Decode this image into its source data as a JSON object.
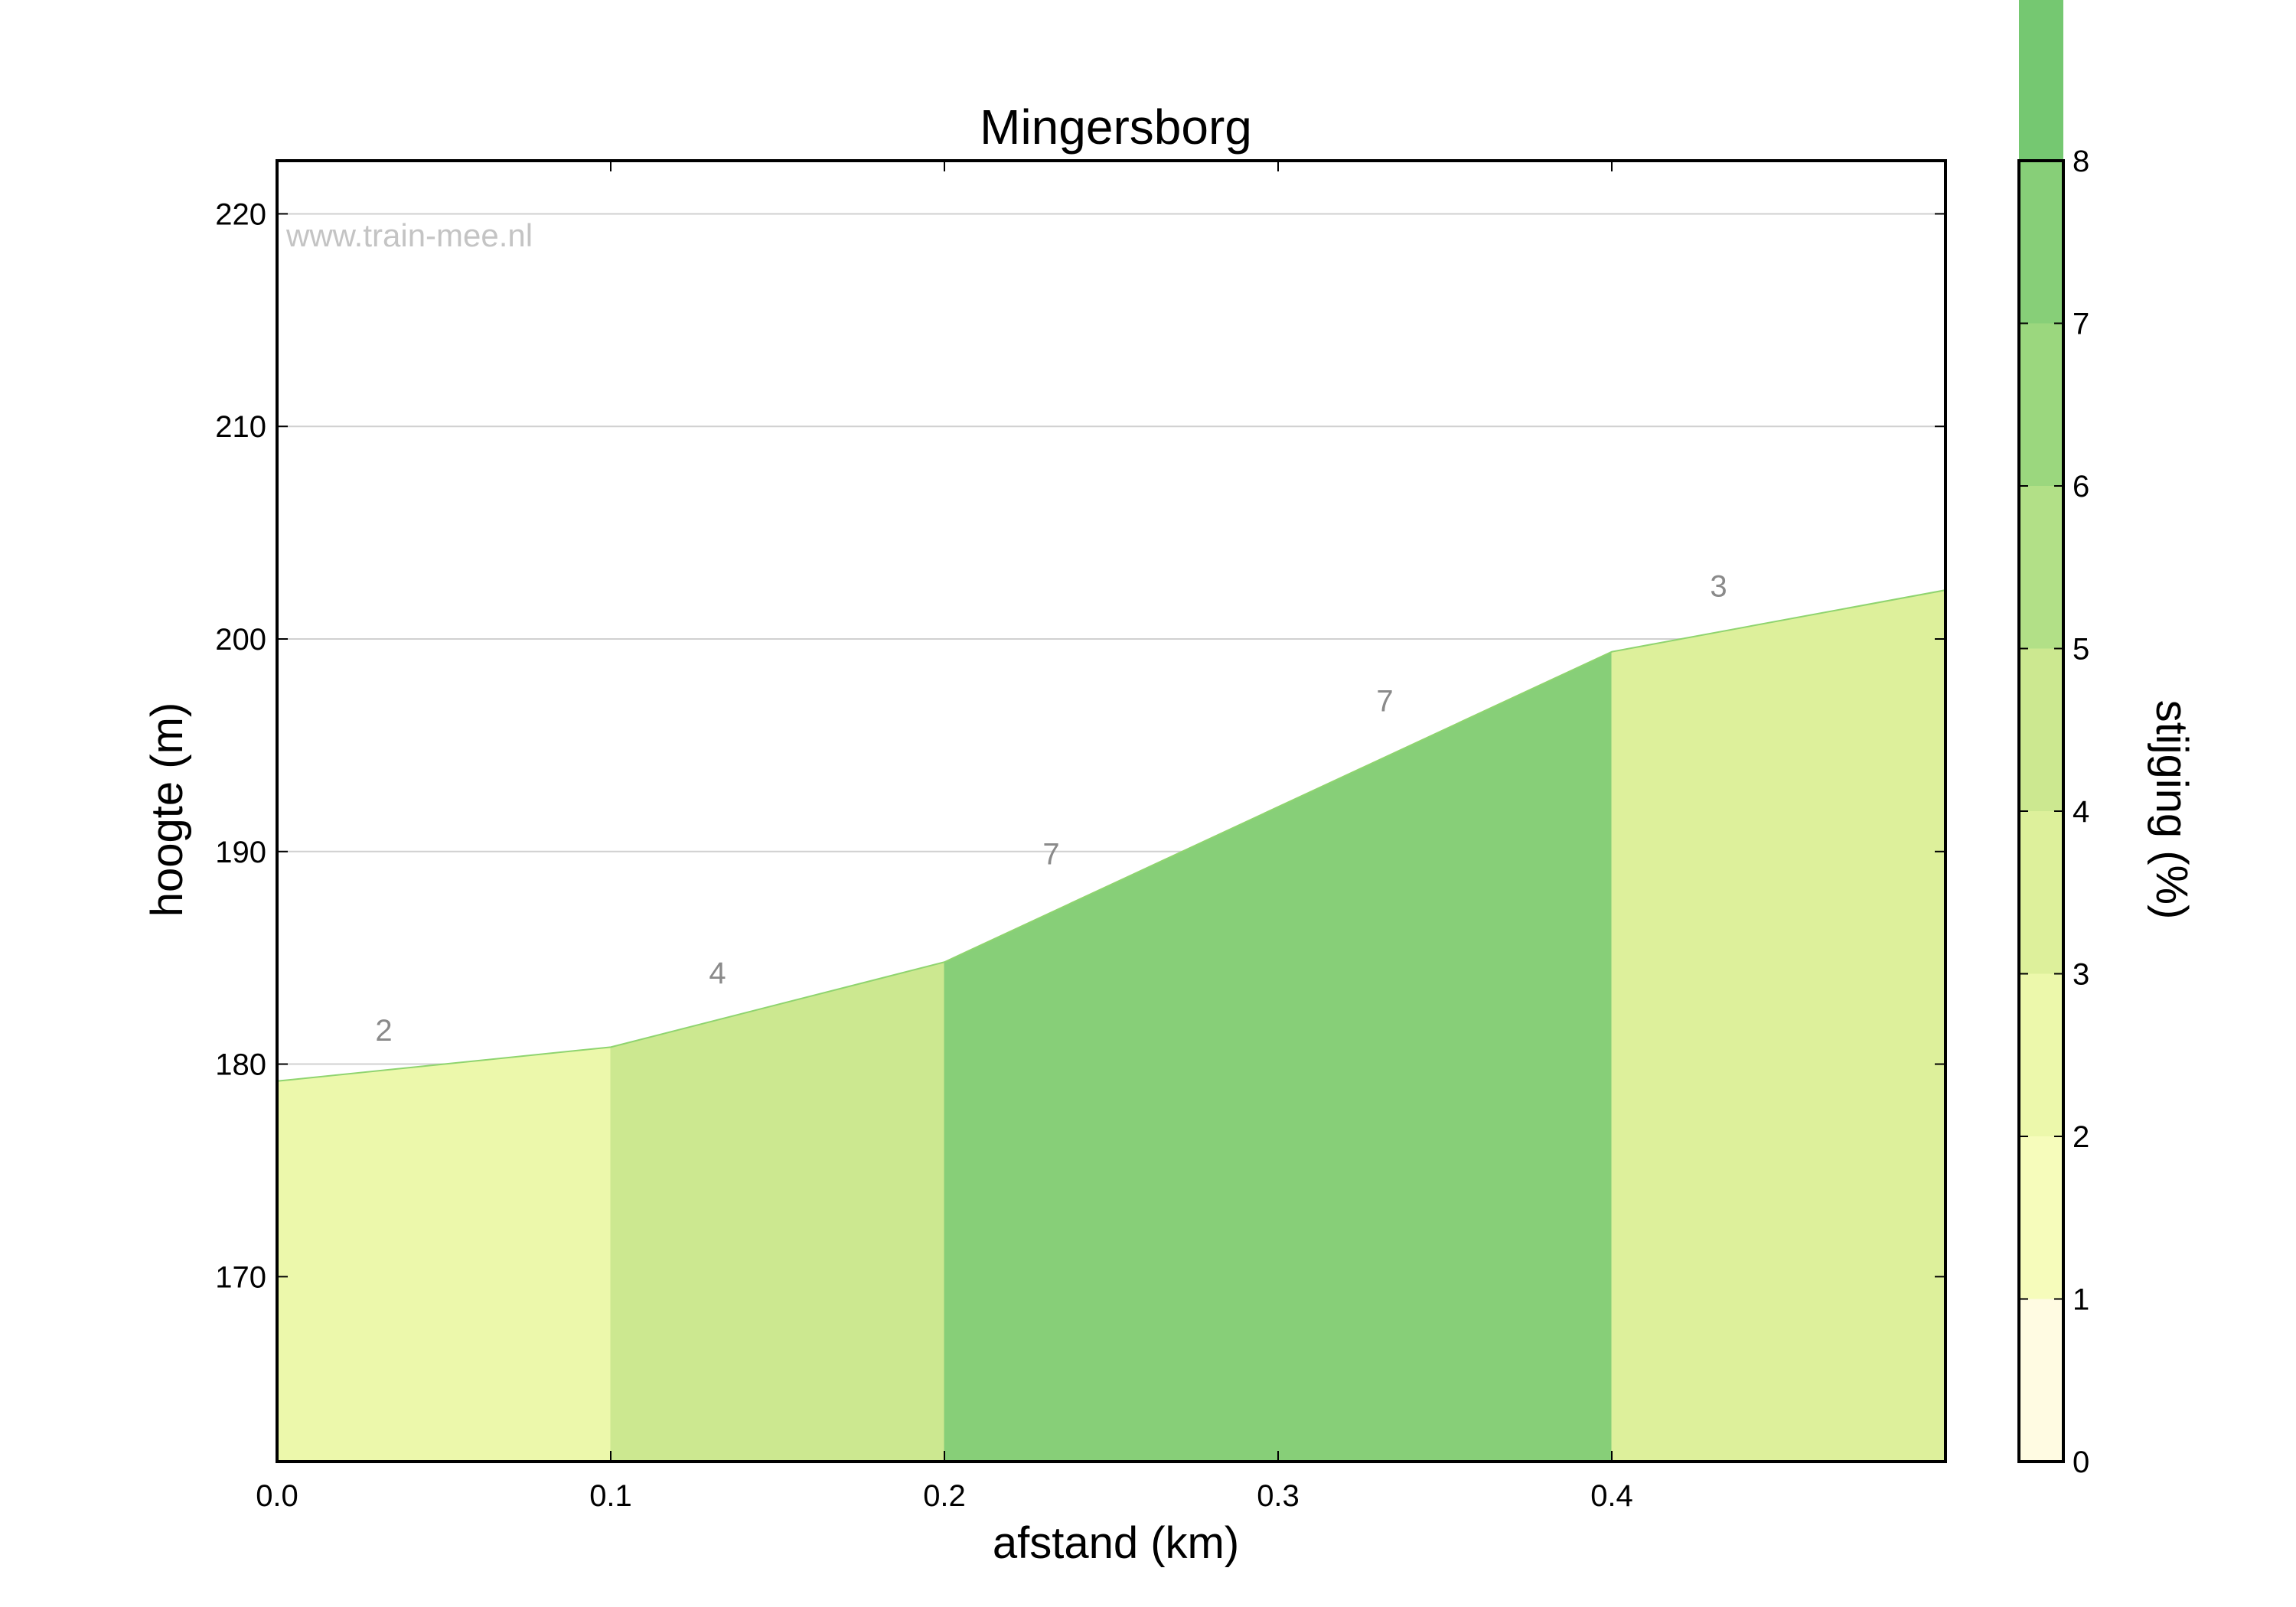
{
  "chart_data": {
    "type": "area",
    "title": "Mingersborg",
    "xlabel": "afstand (km)",
    "ylabel": "hoogte (m)",
    "watermark": "www.train-mee.nl",
    "xlim": [
      0,
      0.5
    ],
    "ylim": [
      161.3,
      222.5
    ],
    "xticks": [
      0.0,
      0.1,
      0.2,
      0.3,
      0.4
    ],
    "xtick_labels": [
      "0.0",
      "0.1",
      "0.2",
      "0.3",
      "0.4"
    ],
    "yticks": [
      170,
      180,
      190,
      200,
      210,
      220
    ],
    "ytick_labels": [
      "170",
      "180",
      "190",
      "200",
      "210",
      "220"
    ],
    "grid": "horizontal",
    "x": [
      0.0,
      0.1,
      0.2,
      0.4,
      0.5
    ],
    "y": [
      179.2,
      180.8,
      184.8,
      199.4,
      202.3
    ],
    "segments": [
      {
        "x0": 0.0,
        "x1": 0.1,
        "grade": 2,
        "label": "2",
        "label_x": 0.032,
        "label_y": 181.1
      },
      {
        "x0": 0.1,
        "x1": 0.2,
        "grade": 4,
        "label": "4",
        "label_x": 0.132,
        "label_y": 183.8
      },
      {
        "x0": 0.2,
        "x1": 0.3,
        "grade": 7,
        "label": "7",
        "label_x": 0.232,
        "label_y": 189.4
      },
      {
        "x0": 0.3,
        "x1": 0.4,
        "grade": 7,
        "label": "7",
        "label_x": 0.332,
        "label_y": 196.6
      },
      {
        "x0": 0.4,
        "x1": 0.5,
        "grade": 3,
        "label": "3",
        "label_x": 0.432,
        "label_y": 202.0
      }
    ],
    "colorbar": {
      "label": "stijging (%)",
      "range": [
        0,
        8
      ],
      "ticks": [
        0,
        1,
        2,
        3,
        4,
        5,
        6,
        7,
        8
      ],
      "tick_labels": [
        "0",
        "1",
        "2",
        "3",
        "4",
        "5",
        "6",
        "7",
        "8"
      ],
      "colors": [
        "#fffbe2",
        "#f6fcbb",
        "#ecf8ab",
        "#ddf09b",
        "#cce890",
        "#b2e087",
        "#9bd77e",
        "#87cf78",
        "#75c871"
      ]
    },
    "outline_color": "#8fd46f"
  }
}
